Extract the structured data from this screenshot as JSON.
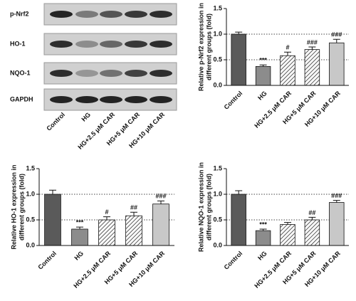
{
  "blot": {
    "rows": [
      "p-Nrf2",
      "HO-1",
      "NQO-1",
      "GAPDH"
    ],
    "columns": [
      "Control",
      "HG",
      "HG+2.5 μM CAR",
      "HG+5 μM CAR",
      "HG+10 μM CAR"
    ]
  },
  "chart_data": [
    {
      "type": "bar",
      "ylabel": [
        "Relative p-Nrf2 expression in",
        "different groups (fold)"
      ],
      "categories": [
        "Control",
        "HG",
        "HG+2.5 μM CAR",
        "HG+5 μM CAR",
        "HG+10 μM CAR"
      ],
      "values": [
        1.0,
        0.37,
        0.58,
        0.7,
        0.83
      ],
      "errors": [
        0.04,
        0.03,
        0.07,
        0.05,
        0.07
      ],
      "annotations": [
        null,
        "***",
        "#",
        "###",
        "###"
      ],
      "colors": [
        "#5a5a5a",
        "#8c8c8c",
        "#ffffff",
        "#ffffff",
        "#c8c8c8"
      ],
      "hatch": [
        false,
        false,
        true,
        true,
        false
      ],
      "ylim": [
        0,
        1.5
      ],
      "yticks": [
        {
          "value": 0,
          "label": "0.0"
        },
        {
          "value": 0.5,
          "label": "0.5"
        },
        {
          "value": 1,
          "label": "1.0"
        },
        {
          "value": 1.5,
          "label": "1.5"
        }
      ],
      "reference_lines": [
        0.5,
        1
      ]
    },
    {
      "type": "bar",
      "ylabel": [
        "Relative HO-1 expression in",
        "different groups (fold)"
      ],
      "categories": [
        "Control",
        "HG",
        "HG+2.5 μM CAR",
        "HG+5 μM CAR",
        "HG+10 μM CAR"
      ],
      "values": [
        1.0,
        0.32,
        0.5,
        0.58,
        0.81
      ],
      "errors": [
        0.08,
        0.04,
        0.06,
        0.07,
        0.06
      ],
      "annotations": [
        null,
        "***",
        "#",
        "##",
        "###"
      ],
      "colors": [
        "#5a5a5a",
        "#8c8c8c",
        "#ffffff",
        "#ffffff",
        "#c8c8c8"
      ],
      "hatch": [
        false,
        false,
        true,
        true,
        false
      ],
      "ylim": [
        0,
        1.5
      ],
      "yticks": [
        {
          "value": 0,
          "label": "0.0"
        },
        {
          "value": 0.5,
          "label": "0.5"
        },
        {
          "value": 1,
          "label": "1.0"
        },
        {
          "value": 1.5,
          "label": "1.5"
        }
      ],
      "reference_lines": [
        0.5,
        1
      ]
    },
    {
      "type": "bar",
      "ylabel": [
        "Relative NQO-1 expression in",
        "different groups (fold)"
      ],
      "categories": [
        "Control",
        "HG",
        "HG+2.5 μM CAR",
        "HG+5 μM CAR",
        "HG+10 μM CAR"
      ],
      "values": [
        1.0,
        0.29,
        0.41,
        0.5,
        0.84
      ],
      "errors": [
        0.07,
        0.03,
        0.04,
        0.05,
        0.04
      ],
      "annotations": [
        null,
        "***",
        null,
        "##",
        "###"
      ],
      "colors": [
        "#5a5a5a",
        "#8c8c8c",
        "#ffffff",
        "#ffffff",
        "#c8c8c8"
      ],
      "hatch": [
        false,
        false,
        true,
        true,
        false
      ],
      "ylim": [
        0,
        1.5
      ],
      "yticks": [
        {
          "value": 0,
          "label": "0.0"
        },
        {
          "value": 0.5,
          "label": "0.5"
        },
        {
          "value": 1,
          "label": "1.0"
        },
        {
          "value": 1.5,
          "label": "1.5"
        }
      ],
      "reference_lines": [
        0.5,
        1
      ]
    }
  ]
}
